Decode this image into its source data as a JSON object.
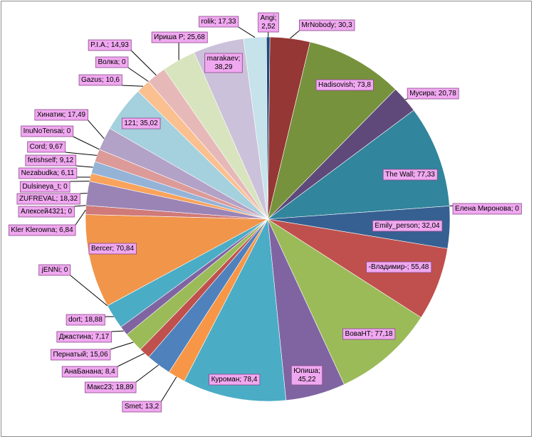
{
  "chart_data": {
    "type": "pie",
    "title": "",
    "legend": "none",
    "slices": [
      {
        "label": "MrNobody; 30,3",
        "name": "MrNobody",
        "value": 30.3,
        "color": "#953735"
      },
      {
        "label": "Hadisovish; 73,8",
        "name": "Hadisovish",
        "value": 73.8,
        "color": "#76923c"
      },
      {
        "label": "Мусира; 20,78",
        "name": "Мусира",
        "value": 20.78,
        "color": "#5f497a"
      },
      {
        "label": "The Wall; 77,33",
        "name": "The Wall",
        "value": 77.33,
        "color": "#31859c"
      },
      {
        "label": "Елена Миронова; 0",
        "name": "Елена Миронова",
        "value": 0,
        "color": "#e46c0a"
      },
      {
        "label": "Emily_person; 32,04",
        "name": "Emily_person",
        "value": 32.04,
        "color": "#366092"
      },
      {
        "label": "-Владимир-; 55,48",
        "name": "-Владимир-",
        "value": 55.48,
        "color": "#c0504d"
      },
      {
        "label": "ВоваНТ; 77,18",
        "name": "ВоваНТ",
        "value": 77.18,
        "color": "#9bbb59"
      },
      {
        "label": "Юпиша; 45,22",
        "name": "Юпиша",
        "value": 45.22,
        "color": "#8064a2"
      },
      {
        "label": "Куроман; 78,4",
        "name": "Куроман",
        "value": 78.4,
        "color": "#4bacc6"
      },
      {
        "label": "Smet; 13,2",
        "name": "Smet",
        "value": 13.2,
        "color": "#f79646"
      },
      {
        "label": "Макс23; 18,89",
        "name": "Макс23",
        "value": 18.89,
        "color": "#4f81bd"
      },
      {
        "label": "АнаБанана; 8,4",
        "name": "АнаБанана",
        "value": 8.4,
        "color": "#c0504d"
      },
      {
        "label": "Пернатый; 15,06",
        "name": "Пернатый",
        "value": 15.06,
        "color": "#9bbb59"
      },
      {
        "label": "Джастина; 7,17",
        "name": "Джастина",
        "value": 7.17,
        "color": "#8064a2"
      },
      {
        "label": "dort; 18,88",
        "name": "dort",
        "value": 18.88,
        "color": "#4bacc6"
      },
      {
        "label": "jENNi; 0",
        "name": "jENNi",
        "value": 0,
        "color": "#f79646"
      },
      {
        "label": "Bercer; 70,84",
        "name": "Bercer",
        "value": 70.84,
        "color": "#f0954a"
      },
      {
        "label": "Kler Klerowna; 6,84",
        "name": "Kler Klerowna",
        "value": 6.84,
        "color": "#d07a7a"
      },
      {
        "label": "Алексей4321; 0",
        "name": "Алексей4321",
        "value": 0,
        "color": "#9bbb59"
      },
      {
        "label": "ZUFREVAL; 18,32",
        "name": "ZUFREVAL",
        "value": 18.32,
        "color": "#9a84b6"
      },
      {
        "label": "Dulsineya_t; 0",
        "name": "Dulsineya_t",
        "value": 0,
        "color": "#4bacc6"
      },
      {
        "label": "Nezabudka; 6,11",
        "name": "Nezabudka",
        "value": 6.11,
        "color": "#f9a35c"
      },
      {
        "label": "fetishself; 9,12",
        "name": "fetishself",
        "value": 9.12,
        "color": "#95b3d7"
      },
      {
        "label": "Cord; 9,67",
        "name": "Cord",
        "value": 9.67,
        "color": "#dc9a98"
      },
      {
        "label": "InuNoTensai; 0",
        "name": "InuNoTensai",
        "value": 0,
        "color": "#c3d69b"
      },
      {
        "label": "Хинатик; 17,49",
        "name": "Хинатик",
        "value": 17.49,
        "color": "#b3a2c7"
      },
      {
        "label": "121; 35,02",
        "name": "121",
        "value": 35.02,
        "color": "#a5d0dd"
      },
      {
        "label": "Gazus; 10,6",
        "name": "Gazus",
        "value": 10.6,
        "color": "#fac090"
      },
      {
        "label": "Волка; 0",
        "name": "Волка",
        "value": 0,
        "color": "#b9cde5"
      },
      {
        "label": "P.I.A.; 14,93",
        "name": "P.I.A.",
        "value": 14.93,
        "color": "#e6b9b8"
      },
      {
        "label": "Ириша Р; 25,68",
        "name": "Ириша Р",
        "value": 25.68,
        "color": "#d7e4bd"
      },
      {
        "label": "marakaev; 38,29",
        "name": "marakaev",
        "value": 38.29,
        "color": "#ccc1da"
      },
      {
        "label": "rolik; 17,33",
        "name": "rolik",
        "value": 17.33,
        "color": "#c6e2ea"
      },
      {
        "label": "Angi; 2,52",
        "name": "Angi",
        "value": 2.52,
        "color": "#1f497d"
      }
    ]
  }
}
